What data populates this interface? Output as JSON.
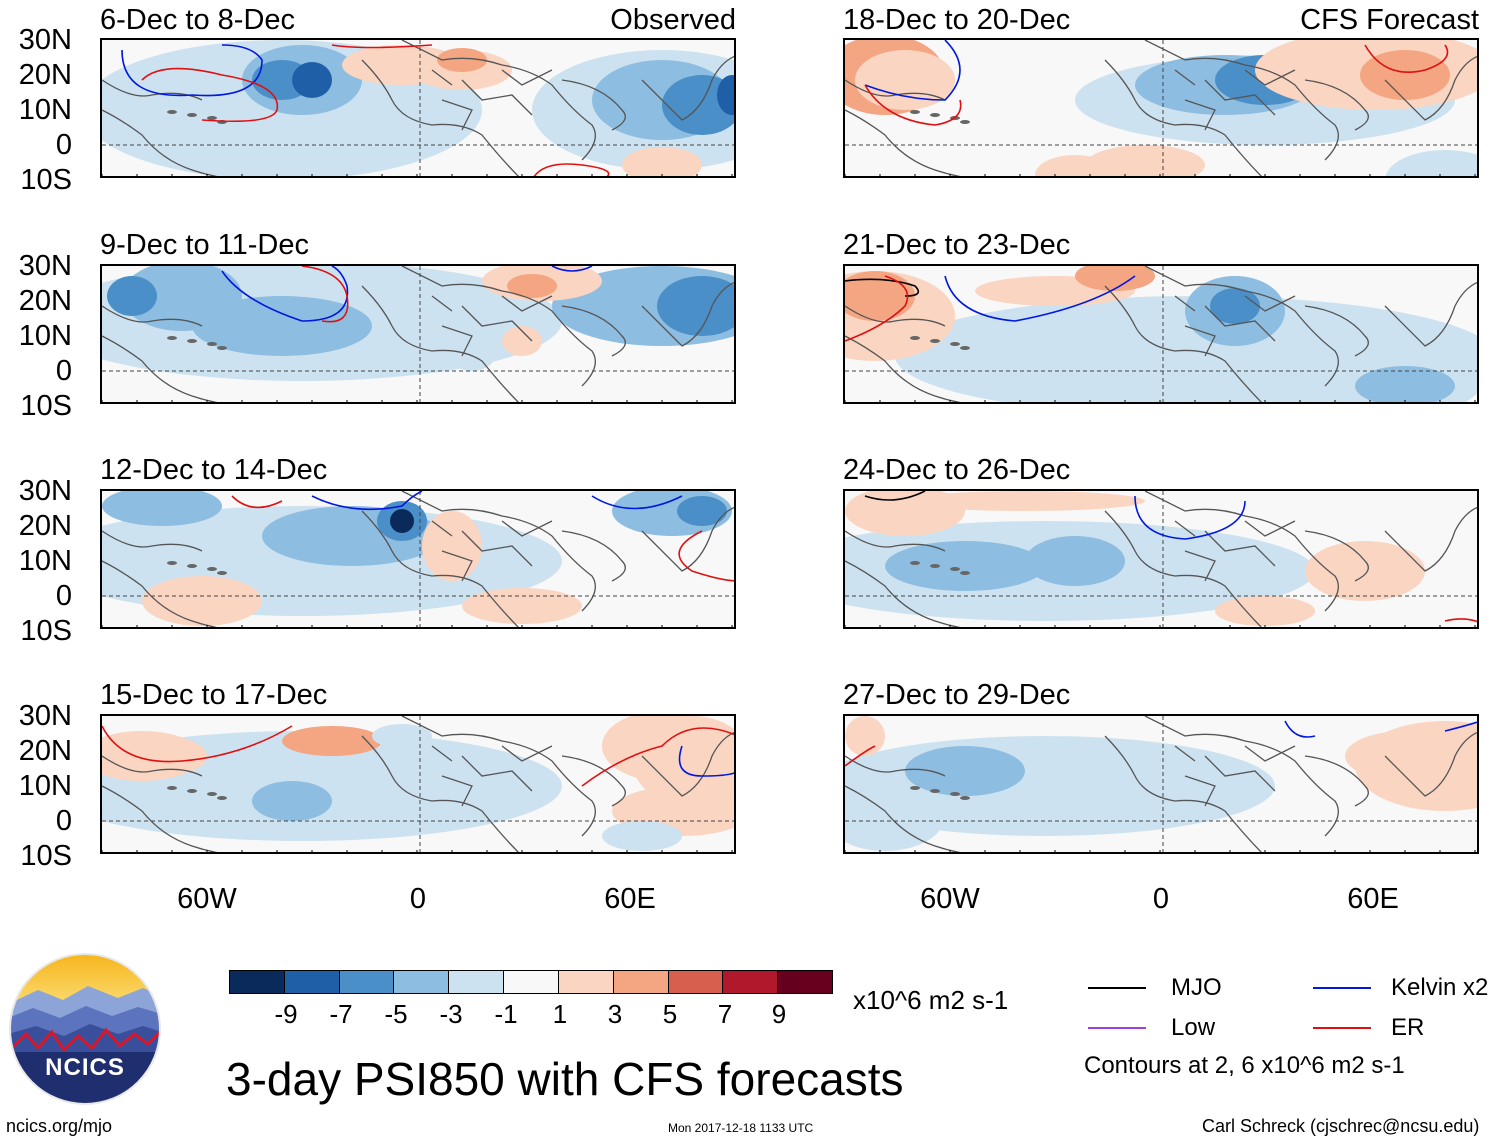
{
  "left_header": "Observed",
  "right_header": "CFS Forecast",
  "left_panels": [
    {
      "title": "6-Dec to 8-Dec"
    },
    {
      "title": "9-Dec to 11-Dec"
    },
    {
      "title": "12-Dec to 14-Dec"
    },
    {
      "title": "15-Dec to 17-Dec"
    }
  ],
  "right_panels": [
    {
      "title": "18-Dec to 20-Dec"
    },
    {
      "title": "21-Dec to 23-Dec"
    },
    {
      "title": "24-Dec to 26-Dec"
    },
    {
      "title": "27-Dec to 29-Dec"
    }
  ],
  "lat_labels": [
    "30N",
    "20N",
    "10N",
    "0",
    "10S"
  ],
  "lon_labels": [
    "60W",
    "0",
    "60E"
  ],
  "colorbar": {
    "colors": [
      "#0b2a5c",
      "#1f5fa8",
      "#4a8fc7",
      "#8dbde0",
      "#cde2f0",
      "#f8f8f8",
      "#fad5c2",
      "#f4a582",
      "#d6604d",
      "#b2182b",
      "#67001f"
    ],
    "labels": [
      "-9",
      "-7",
      "-5",
      "-3",
      "-1",
      "1",
      "3",
      "5",
      "7",
      "9"
    ],
    "units": "x10^6 m2 s-1"
  },
  "legend": {
    "items": [
      {
        "label": "MJO",
        "color": "#000000"
      },
      {
        "label": "Kelvin x2",
        "color": "#0018e0"
      },
      {
        "label": "Low",
        "color": "#a040e0"
      },
      {
        "label": "ER",
        "color": "#e01010"
      }
    ],
    "note": "Contours at 2, 6 x10^6 m2 s-1"
  },
  "logo_text": "NCICS",
  "title": "3-day PSI850 with CFS forecasts",
  "footer_left": "ncics.org/mjo",
  "footer_center": "Mon 2017-12-18 1133 UTC",
  "footer_right": "Carl Schreck (cjschrec@ncsu.edu)"
}
